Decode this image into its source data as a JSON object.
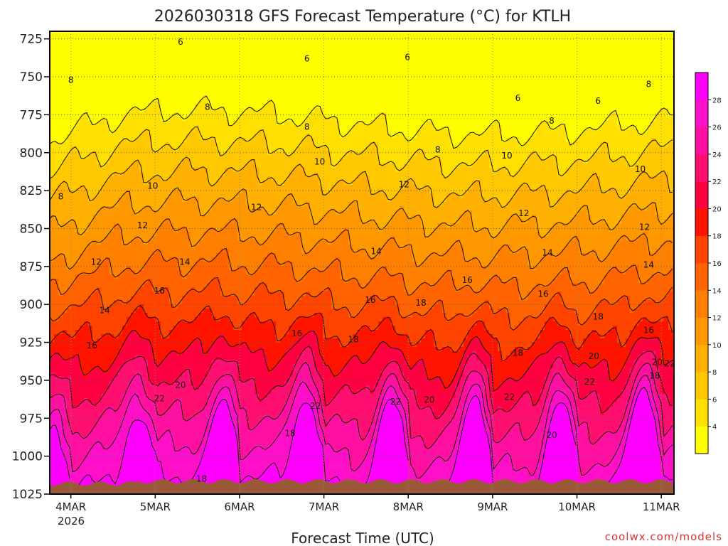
{
  "chart_data": {
    "type": "heatmap",
    "title": "2026030318 GFS Forecast Temperature (°C) for KTLH",
    "xlabel": "Forecast Time (UTC)",
    "ylabel": "",
    "y_ticks": [
      "725",
      "750",
      "775",
      "800",
      "825",
      "850",
      "875",
      "900",
      "925",
      "950",
      "975",
      "1000",
      "1025"
    ],
    "y_values": [
      725,
      750,
      775,
      800,
      825,
      850,
      875,
      900,
      925,
      950,
      975,
      1000,
      1025
    ],
    "ylim": [
      1025,
      720
    ],
    "x_ticks": [
      "4MAR",
      "5MAR",
      "6MAR",
      "7MAR",
      "8MAR",
      "9MAR",
      "10MAR",
      "11MAR"
    ],
    "x_tick_sub": "2026",
    "xlim_days": [
      3.75,
      11.15
    ],
    "grid": true,
    "colorbar": {
      "levels": [
        "4",
        "6",
        "8",
        "10",
        "12",
        "14",
        "16",
        "18",
        "20",
        "22",
        "24",
        "26",
        "28"
      ],
      "colors": [
        "#ffff00",
        "#ffe000",
        "#ffc800",
        "#ffb000",
        "#ff9800",
        "#ff8000",
        "#ff6400",
        "#ff4400",
        "#ff1400",
        "#ff0040",
        "#ff1070",
        "#ff10a0",
        "#ff10c8",
        "#ff00ff"
      ]
    },
    "ground_color": "#9a5a3a",
    "contour_labels": [
      {
        "v": "6",
        "d": 5.3,
        "p": 727
      },
      {
        "v": "6",
        "d": 6.8,
        "p": 738
      },
      {
        "v": "6",
        "d": 7.99,
        "p": 737
      },
      {
        "v": "6",
        "d": 9.3,
        "p": 764
      },
      {
        "v": "6",
        "d": 10.25,
        "p": 766
      },
      {
        "v": "8",
        "d": 4.0,
        "p": 752
      },
      {
        "v": "8",
        "d": 5.62,
        "p": 770
      },
      {
        "v": "8",
        "d": 6.8,
        "p": 783
      },
      {
        "v": "8",
        "d": 8.35,
        "p": 798
      },
      {
        "v": "8",
        "d": 9.7,
        "p": 779
      },
      {
        "v": "8",
        "d": 10.85,
        "p": 755
      },
      {
        "v": "8",
        "d": 3.88,
        "p": 829
      },
      {
        "v": "10",
        "d": 4.97,
        "p": 822
      },
      {
        "v": "10",
        "d": 6.95,
        "p": 806
      },
      {
        "v": "10",
        "d": 9.17,
        "p": 802
      },
      {
        "v": "10",
        "d": 10.75,
        "p": 811
      },
      {
        "v": "12",
        "d": 4.3,
        "p": 872
      },
      {
        "v": "12",
        "d": 4.85,
        "p": 848
      },
      {
        "v": "12",
        "d": 6.2,
        "p": 836
      },
      {
        "v": "12",
        "d": 7.95,
        "p": 821
      },
      {
        "v": "12",
        "d": 9.37,
        "p": 840
      },
      {
        "v": "12",
        "d": 10.8,
        "p": 849
      },
      {
        "v": "14",
        "d": 4.4,
        "p": 904
      },
      {
        "v": "14",
        "d": 5.35,
        "p": 872
      },
      {
        "v": "14",
        "d": 7.62,
        "p": 865
      },
      {
        "v": "14",
        "d": 9.65,
        "p": 866
      },
      {
        "v": "14",
        "d": 10.85,
        "p": 874
      },
      {
        "v": "16",
        "d": 4.25,
        "p": 927
      },
      {
        "v": "16",
        "d": 5.05,
        "p": 891
      },
      {
        "v": "16",
        "d": 6.68,
        "p": 919
      },
      {
        "v": "16",
        "d": 7.55,
        "p": 897
      },
      {
        "v": "16",
        "d": 8.7,
        "p": 884
      },
      {
        "v": "16",
        "d": 9.6,
        "p": 893
      },
      {
        "v": "16",
        "d": 10.85,
        "p": 917
      },
      {
        "v": "18",
        "d": 5.55,
        "p": 1015
      },
      {
        "v": "18",
        "d": 6.6,
        "p": 985
      },
      {
        "v": "18",
        "d": 7.35,
        "p": 923
      },
      {
        "v": "18",
        "d": 8.15,
        "p": 899
      },
      {
        "v": "18",
        "d": 9.3,
        "p": 932
      },
      {
        "v": "18",
        "d": 10.25,
        "p": 908
      },
      {
        "v": "18",
        "d": 10.92,
        "p": 947
      },
      {
        "v": "20",
        "d": 5.3,
        "p": 953
      },
      {
        "v": "20",
        "d": 8.25,
        "p": 963
      },
      {
        "v": "20",
        "d": 9.7,
        "p": 986
      },
      {
        "v": "20",
        "d": 10.2,
        "p": 934
      },
      {
        "v": "20",
        "d": 10.95,
        "p": 938
      },
      {
        "v": "22",
        "d": 5.05,
        "p": 962
      },
      {
        "v": "22",
        "d": 6.9,
        "p": 967
      },
      {
        "v": "22",
        "d": 7.85,
        "p": 964
      },
      {
        "v": "22",
        "d": 9.2,
        "p": 961
      },
      {
        "v": "22",
        "d": 10.15,
        "p": 951
      },
      {
        "v": "22",
        "d": 11.1,
        "p": 939
      }
    ]
  },
  "credit": "coolwx.com/models"
}
